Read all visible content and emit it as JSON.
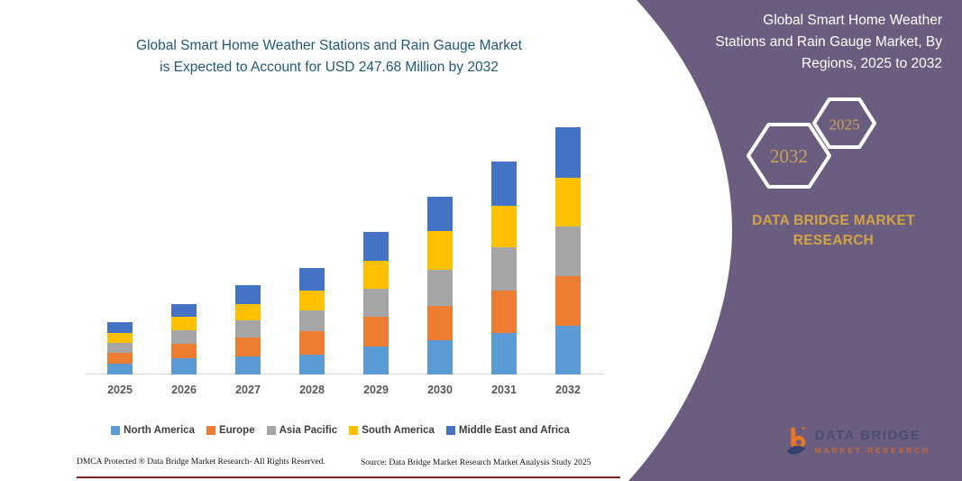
{
  "header": {
    "title_lines": [
      "Global Smart Home Weather Stations and Rain Gauge Market",
      "is Expected to Account for USD 247.68 Million by 2032"
    ]
  },
  "chart_data": {
    "type": "bar",
    "stacked": true,
    "title": "Global Smart Home Weather Stations and Rain Gauge Market is Expected to Account for USD 247.68 Million by 2032",
    "unit": "USD Million",
    "total_2032": 247.68,
    "categories": [
      "2025",
      "2026",
      "2027",
      "2028",
      "2029",
      "2030",
      "2031",
      "2032"
    ],
    "series": [
      {
        "name": "North America",
        "color": "#5b9bd5",
        "values": [
          10.8,
          15.9,
          18.1,
          19.6,
          28.0,
          34.1,
          41.6,
          49.1
        ]
      },
      {
        "name": "Europe",
        "color": "#ed7d31",
        "values": [
          10.8,
          14.5,
          19.0,
          24.1,
          30.1,
          34.6,
          42.8,
          49.7
        ]
      },
      {
        "name": "Asia Pacific",
        "color": "#a5a5a5",
        "values": [
          9.9,
          14.2,
          17.2,
          20.5,
          28.0,
          36.2,
          43.1,
          49.7
        ]
      },
      {
        "name": "South America",
        "color": "#ffc000",
        "values": [
          9.9,
          13.6,
          16.5,
          20.3,
          27.8,
          38.6,
          41.3,
          48.8
        ]
      },
      {
        "name": "Middle East and Africa",
        "color": "#4472c4",
        "values": [
          10.8,
          12.0,
          19.0,
          22.0,
          28.7,
          34.4,
          44.6,
          50.4
        ]
      }
    ],
    "ylim": [
      0,
      260
    ],
    "grid": false,
    "y_axis_visible": false,
    "legend_position": "bottom"
  },
  "side_panel": {
    "background_color": "#6b5d80",
    "title_lines": [
      "Global Smart Home Weather",
      "Stations and Rain Gauge Market, By",
      "Regions, 2025 to 2032"
    ],
    "hexagons": [
      {
        "label": "2032"
      },
      {
        "label": "2025"
      }
    ],
    "brand_name": "DATA BRIDGE MARKET RESEARCH",
    "logo": {
      "line1": "DATA BRIDGE",
      "line2": "MARKET RESEARCH"
    }
  },
  "footer": {
    "left": "DMCA Protected ® Data Bridge Market Research-  All Rights Reserved.",
    "source": "Source: Data Bridge Market Research  Market Analysis Study 2025"
  }
}
